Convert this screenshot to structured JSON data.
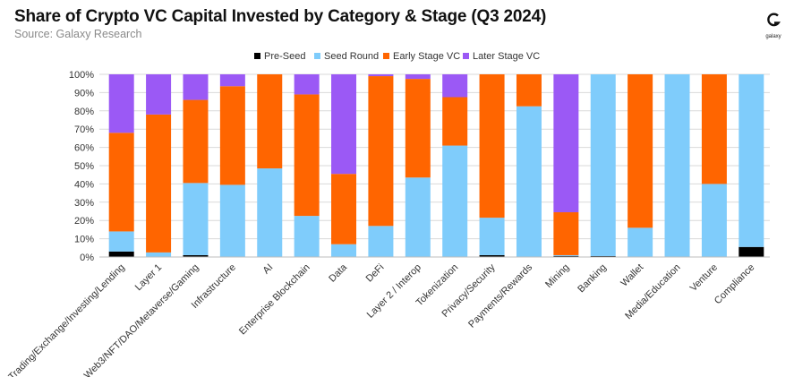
{
  "header": {
    "title": "Share of Crypto VC Capital Invested by Category & Stage (Q3 2024)",
    "source": "Source: Galaxy Research",
    "logo_text": "galaxy"
  },
  "colors": {
    "pre_seed": "#000000",
    "seed_round": "#7fccfb",
    "early_stage": "#ff6500",
    "later_stage": "#9b59f5",
    "grid": "#d9d9d9",
    "axis_text": "#333333"
  },
  "chart_data": {
    "type": "bar",
    "stacked": true,
    "title": "Share of Crypto VC Capital Invested by Category & Stage (Q3 2024)",
    "xlabel": "",
    "ylabel": "",
    "ylim": [
      0,
      100
    ],
    "yticks": [
      "0%",
      "10%",
      "20%",
      "30%",
      "40%",
      "50%",
      "60%",
      "70%",
      "80%",
      "90%",
      "100%"
    ],
    "legend_position": "top-center",
    "categories": [
      "Trading/Exchange/Investing/Lending",
      "Layer 1",
      "Web3/NFT/DAO/Metaverse/Gaming",
      "Infrastructure",
      "AI",
      "Enterprise Blockchain",
      "Data",
      "DeFi",
      "Layer 2 / Interop",
      "Tokenization",
      "Privacy/Security",
      "Payments/Rewards",
      "Mining",
      "Banking",
      "Wallet",
      "Media/Education",
      "Venture",
      "Compliance"
    ],
    "series": [
      {
        "name": "Pre-Seed",
        "values": [
          3,
          0,
          1,
          0,
          0,
          0,
          0,
          0,
          0,
          0,
          1,
          0,
          0.5,
          0.5,
          0,
          0,
          0,
          5.5
        ]
      },
      {
        "name": "Seed Round",
        "values": [
          11,
          2.5,
          39.5,
          39.5,
          48.5,
          22.5,
          7,
          17,
          43.5,
          61,
          20.5,
          82.5,
          0.5,
          99.5,
          16,
          100,
          40,
          94.5
        ]
      },
      {
        "name": "Early Stage VC",
        "values": [
          54,
          75.5,
          45.5,
          54,
          51.5,
          66.5,
          38.5,
          82,
          54,
          26.5,
          78.5,
          17.5,
          23.5,
          0,
          84,
          0,
          60,
          0
        ]
      },
      {
        "name": "Later Stage VC",
        "values": [
          32,
          22,
          14,
          6.5,
          0,
          11,
          54.5,
          1,
          2.5,
          12.5,
          0,
          0,
          75.5,
          0,
          0,
          0,
          0,
          0
        ]
      }
    ]
  }
}
